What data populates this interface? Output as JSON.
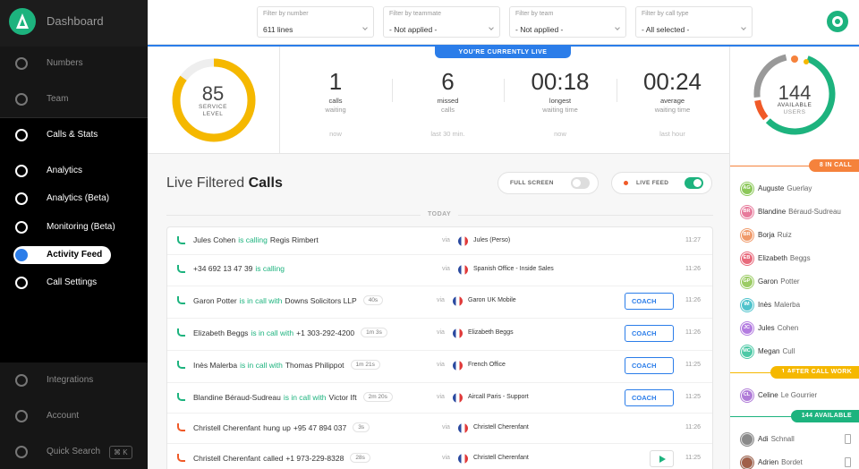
{
  "sidebar": {
    "brand": "Dashboard",
    "items": [
      "Numbers",
      "Team",
      "Calls & Stats",
      "Analytics",
      "Analytics (Beta)",
      "Monitoring (Beta)",
      "Activity Feed",
      "Call Settings"
    ],
    "active": 6,
    "bottom": [
      "Integrations",
      "Account",
      "Quick Search"
    ],
    "shortcut": "⌘ K"
  },
  "filters": [
    {
      "label": "Filter by number",
      "value": "611 lines"
    },
    {
      "label": "Filter by teammate",
      "value": "- Not applied -"
    },
    {
      "label": "Filter by team",
      "value": "- Not applied -"
    },
    {
      "label": "Filter by call type",
      "value": "- All selected -"
    }
  ],
  "banner": "YOU'RE CURRENTLY LIVE",
  "service": {
    "value": "85",
    "label": [
      "SERVICE",
      "LEVEL"
    ]
  },
  "stats": [
    {
      "value": "1",
      "label": [
        "calls",
        "waiting"
      ],
      "note": "now"
    },
    {
      "value": "6",
      "label": [
        "missed",
        "calls"
      ],
      "note": "last 30 min."
    },
    {
      "value": "00:18",
      "label": [
        "longest",
        "waiting time"
      ],
      "note": "now"
    },
    {
      "value": "00:24",
      "label": [
        "average",
        "waiting time"
      ],
      "note": "last hour"
    }
  ],
  "available": {
    "value": "144",
    "label": [
      "AVAILABLE",
      "USERS"
    ]
  },
  "feed": {
    "title": "Live Filtered ",
    "title_bold": "Calls",
    "toggles": [
      {
        "label": "FULL SCREEN",
        "on": false
      },
      {
        "label": "LIVE FEED",
        "on": true
      }
    ],
    "day": "TODAY",
    "rows": [
      {
        "caller": "Jules Cohen",
        "action": "is calling",
        "target": "Regis Rimbert",
        "via": "via",
        "line": "Jules (Perso)",
        "time": "11:27",
        "color": "#1db37e"
      },
      {
        "caller": "+34 692 13 47 39",
        "action": "is calling",
        "via": "via",
        "line": "Spanish Office - Inside Sales",
        "time": "11:26",
        "color": "#1db37e"
      },
      {
        "caller": "Garon Potter",
        "action": "is in call with",
        "target": "Downs Solicitors LLP",
        "duration": "40s",
        "via": "via",
        "line": "Garon UK Mobile",
        "coach": "COACH",
        "time": "11:26",
        "color": "#1db37e"
      },
      {
        "caller": "Elizabeth Beggs",
        "action": "is in call with",
        "target": "+1 303-292-4200",
        "duration": "1m 3s",
        "via": "via",
        "line": "Elizabeth Beggs",
        "coach": "COACH",
        "time": "11:26",
        "color": "#1db37e"
      },
      {
        "caller": "Inès Malerba",
        "action": "is in call with",
        "target": "Thomas Philippot",
        "duration": "1m 21s",
        "via": "via",
        "line": "French Office",
        "coach": "COACH",
        "time": "11:25",
        "color": "#1db37e"
      },
      {
        "caller": "Blandine Béraud-Sudreau",
        "action": "is in call with",
        "target": "Victor Ift",
        "duration": "2m 20s",
        "via": "via",
        "line": "Aircall Paris - Support",
        "coach": "COACH",
        "time": "11:25",
        "color": "#1db37e"
      },
      {
        "caller": "Christell Cherenfant",
        "action": "hung up",
        "target": "+95 47 894 037",
        "duration": "3s",
        "via": "via",
        "line": "Christell Cherenfant",
        "time": "11:26",
        "color": "#333333"
      },
      {
        "caller": "Christell Cherenfant",
        "action": "called",
        "target": "+1 973-229-8328",
        "duration": "28s",
        "via": "via",
        "line": "Christell Cherenfant",
        "time": "11:25",
        "color": "#333333"
      }
    ]
  },
  "groups": [
    {
      "label": "8 IN CALL",
      "color": "#f5823c",
      "users": [
        {
          "initials": "AG",
          "first": "Auguste",
          "last": "Guerlay",
          "color": "#8cc85a"
        },
        {
          "initials": "BR",
          "first": "Blandine",
          "last": "Béraud-Sudreau",
          "color": "#e77b9c"
        },
        {
          "initials": "BR",
          "first": "Borja",
          "last": "Ruiz",
          "color": "#f09a6a"
        },
        {
          "initials": "EB",
          "first": "Elizabeth",
          "last": "Beggs",
          "color": "#e86a7c"
        },
        {
          "initials": "GP",
          "first": "Garon",
          "last": "Potter",
          "color": "#9ccc65"
        },
        {
          "initials": "IM",
          "first": "Inès",
          "last": "Malerba",
          "color": "#4fc3cc"
        },
        {
          "initials": "JC",
          "first": "Jules",
          "last": "Cohen",
          "color": "#b37ce0"
        },
        {
          "initials": "MC",
          "first": "Megan",
          "last": "Cull",
          "color": "#4dc9a6"
        }
      ]
    },
    {
      "label": "1 AFTER CALL WORK",
      "color": "#f5b800",
      "users": [
        {
          "initials": "CL",
          "first": "Celine",
          "last": "Le Gourrier",
          "color": "#b07cd8"
        }
      ]
    },
    {
      "label": "144 AVAILABLE",
      "color": "#1db37e",
      "users": [
        {
          "first": "Adi",
          "last": "Schnall",
          "color": "#8a8a8a"
        },
        {
          "first": "Adrien",
          "last": "Bordet",
          "color": "#a0604a"
        }
      ]
    }
  ]
}
